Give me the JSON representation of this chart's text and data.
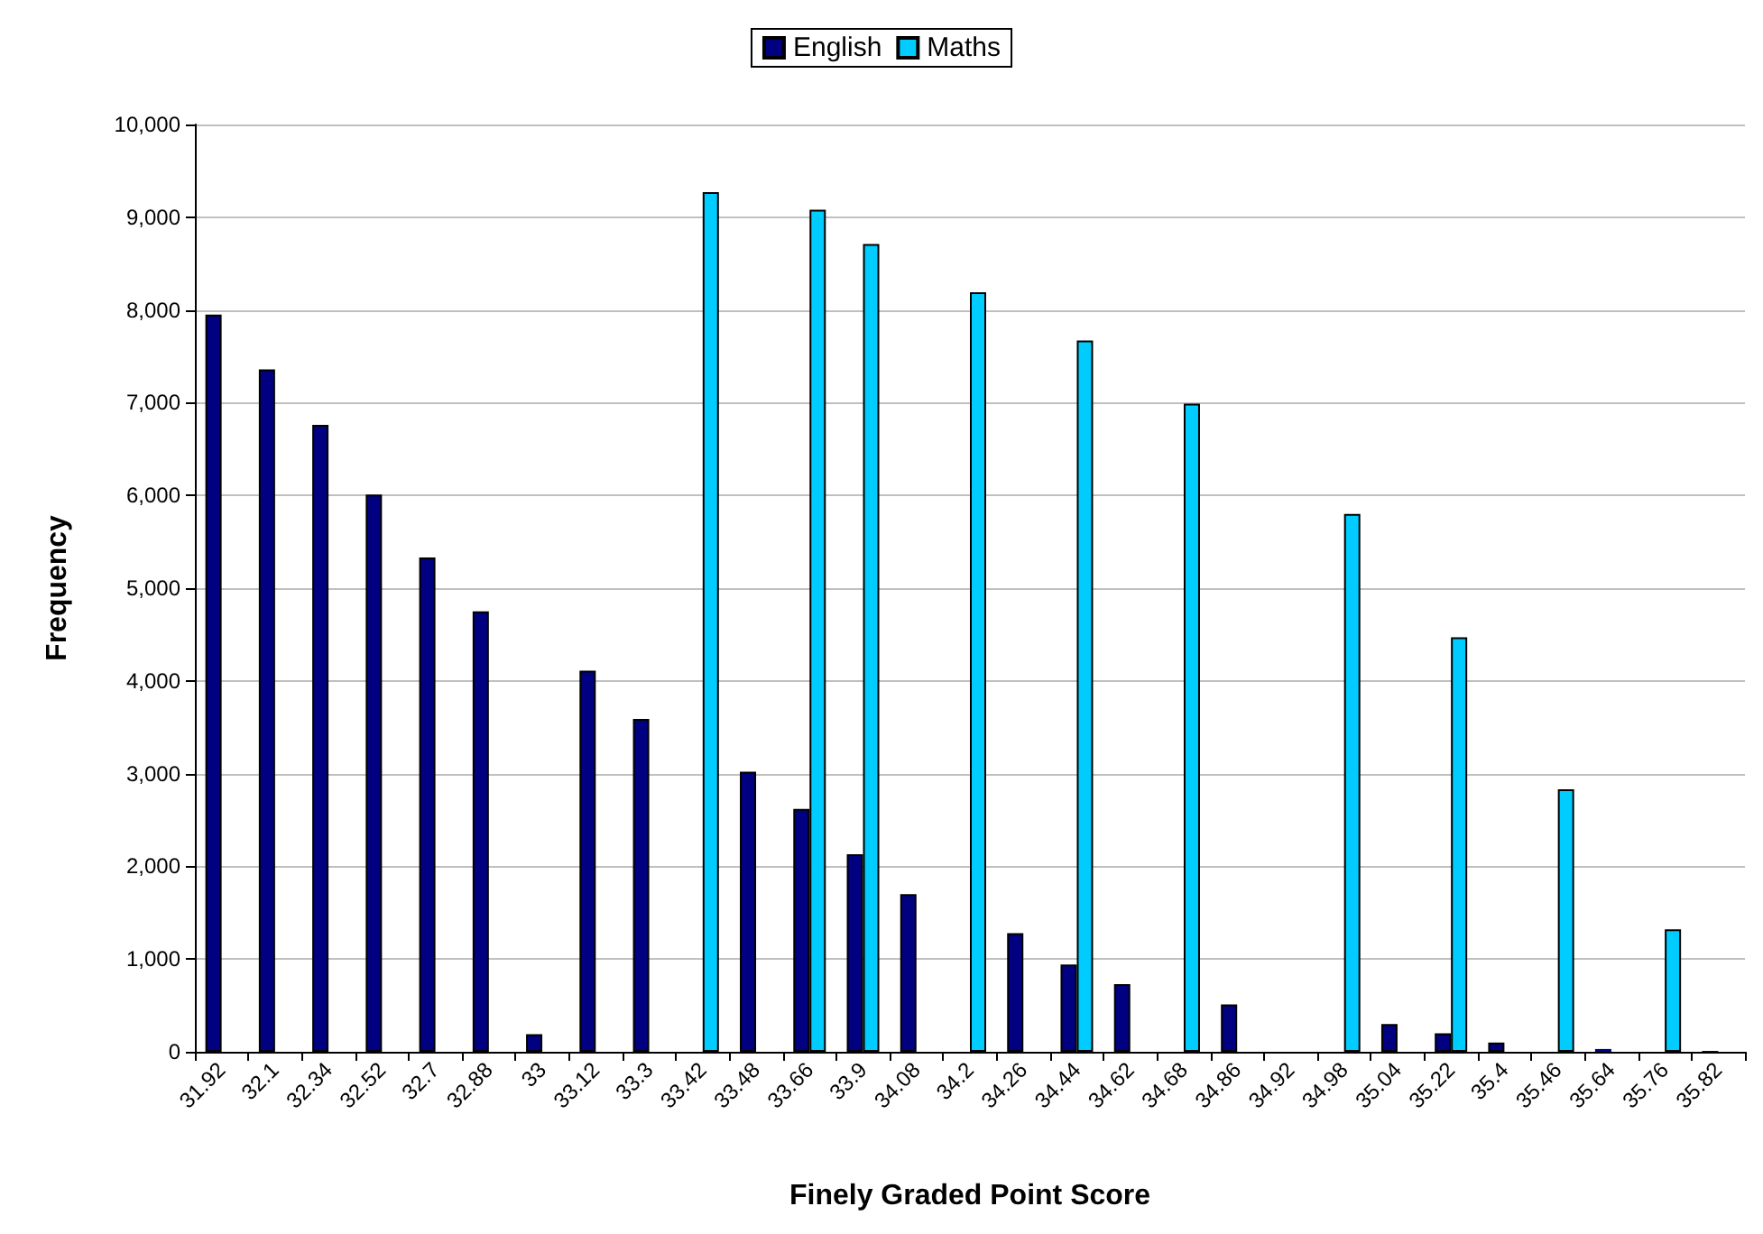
{
  "chart_data": {
    "type": "bar",
    "xlabel": "Finely Graded Point Score",
    "ylabel": "Frequency",
    "categories": [
      "31.92",
      "32.1",
      "32.34",
      "32.52",
      "32.7",
      "32.88",
      "33",
      "33.12",
      "33.3",
      "33.42",
      "33.48",
      "33.66",
      "33.9",
      "34.08",
      "34.2",
      "34.26",
      "34.44",
      "34.62",
      "34.68",
      "34.86",
      "34.92",
      "34.98",
      "35.04",
      "35.22",
      "35.4",
      "35.46",
      "35.64",
      "35.76",
      "35.82"
    ],
    "series": [
      {
        "name": "English",
        "color": "#000080",
        "values": [
          7950,
          7360,
          6760,
          6010,
          5330,
          4750,
          190,
          4110,
          3590,
          null,
          3020,
          2620,
          2130,
          1700,
          null,
          1280,
          940,
          730,
          null,
          510,
          null,
          null,
          300,
          200,
          100,
          null,
          30,
          null,
          10
        ]
      },
      {
        "name": "Maths",
        "color": "#00ccff",
        "values": [
          null,
          null,
          null,
          null,
          null,
          null,
          null,
          null,
          null,
          9270,
          null,
          9080,
          8710,
          null,
          8190,
          null,
          7670,
          null,
          6990,
          null,
          null,
          5800,
          null,
          4470,
          null,
          2830,
          null,
          1320,
          null
        ]
      }
    ],
    "ylim": [
      0,
      10000
    ],
    "yticks": [
      0,
      {
        "value": 1000,
        "label": "1,000"
      },
      {
        "value": 2000,
        "label": "2,000"
      },
      {
        "value": 3000,
        "label": "3,000"
      },
      {
        "value": 4000,
        "label": "4,000"
      },
      {
        "value": 5000,
        "label": "5,000"
      },
      {
        "value": 6000,
        "label": "6,000"
      },
      {
        "value": 7000,
        "label": "7,000"
      },
      {
        "value": 8000,
        "label": "8,000"
      },
      {
        "value": 9000,
        "label": "9,000"
      },
      {
        "value": 10000,
        "label": "10,000"
      }
    ],
    "grid": "y",
    "legend": "top"
  }
}
